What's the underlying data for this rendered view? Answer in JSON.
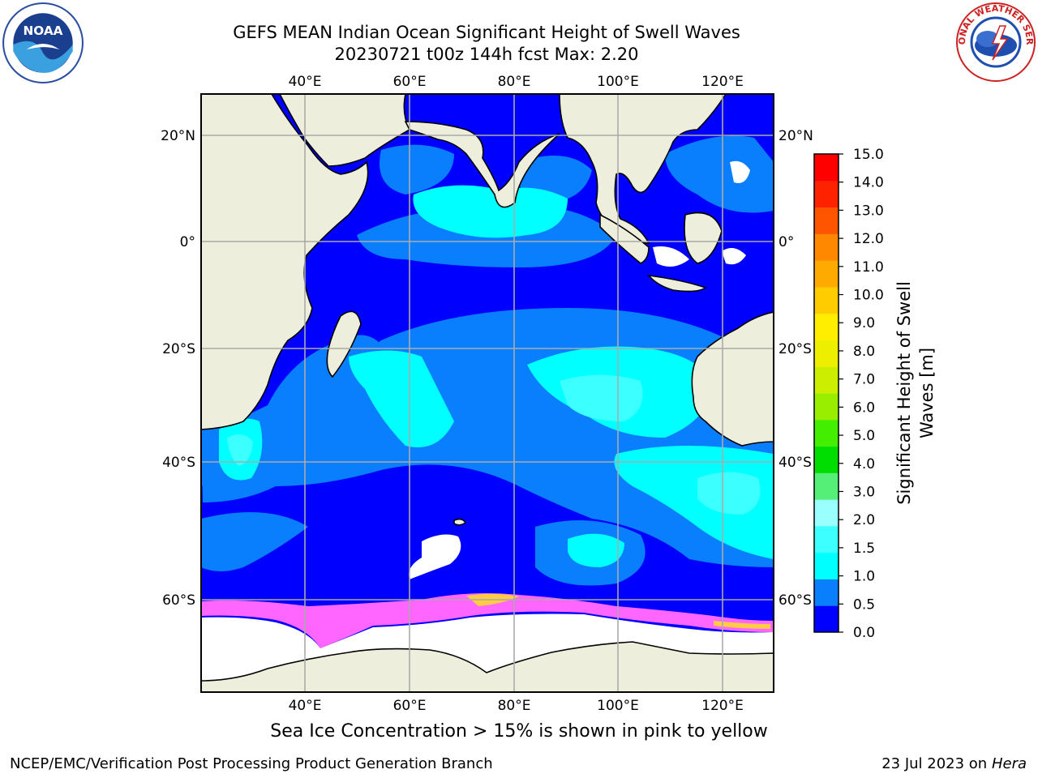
{
  "title": {
    "line1": "GEFS MEAN Indian Ocean Significant Height of Swell Waves",
    "line2": "20230721 t00z 144h fcst   Max: 2.20"
  },
  "map": {
    "lon_range": [
      20,
      130
    ],
    "lat_range": [
      -74,
      27
    ],
    "lon_ticks": [
      "40°E",
      "60°E",
      "80°E",
      "100°E",
      "120°E"
    ],
    "lat_ticks": [
      "20°N",
      "0°",
      "20°S",
      "40°S",
      "60°S"
    ],
    "land_color": "#eeeedd",
    "ice_color": "#ffffff",
    "sea_ice_colors": [
      "#ff44cc",
      "#ff66ff",
      "#ffcc44"
    ]
  },
  "colorbar": {
    "label_line1": "Significant Height of Swell",
    "label_line2": "Waves [m]",
    "tick_labels": [
      "0.0",
      "0.5",
      "1.0",
      "1.5",
      "2.0",
      "3.0",
      "4.0",
      "5.0",
      "6.0",
      "7.0",
      "8.0",
      "9.0",
      "10.0",
      "11.0",
      "12.0",
      "13.0",
      "14.0",
      "15.0"
    ],
    "colors": [
      "#0000ff",
      "#0a7ffe",
      "#00ffff",
      "#3cffff",
      "#99ffff",
      "#55ee77",
      "#00dd00",
      "#44ee00",
      "#99ee00",
      "#ccee00",
      "#eeee00",
      "#ffee00",
      "#ffcc00",
      "#ffaa00",
      "#ff8800",
      "#ff5500",
      "#ff2200",
      "#ff0000"
    ]
  },
  "footnote": "Sea Ice Concentration > 15% is shown in pink to yellow",
  "credit_left": "NCEP/EMC/Verification Post Processing Product Generation Branch",
  "credit_right_prefix": "23 Jul 2023 on ",
  "credit_right_host": "Hera",
  "logos": {
    "noaa": "noaa-logo",
    "nws": "national-weather-service-logo",
    "noaa_text": "NOAA",
    "nws_text": "NATIONAL WEATHER SERVICE"
  }
}
